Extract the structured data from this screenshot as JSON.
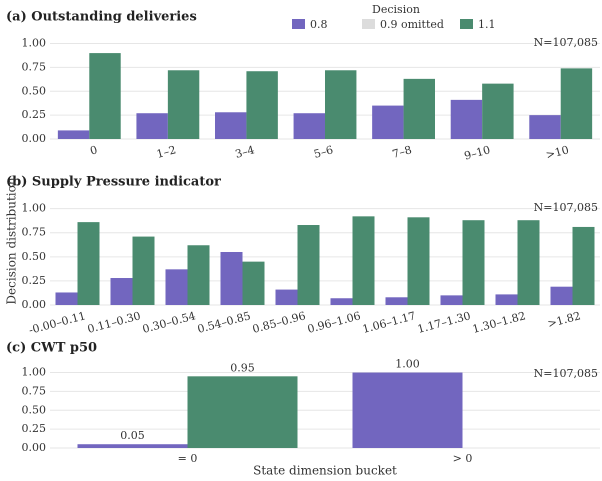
{
  "chart_data": [
    {
      "type": "bar",
      "title": "(a) Outstanding deliveries",
      "annotation": "N=107,085",
      "legend_title": "Decision",
      "categories": [
        "0",
        "1–2",
        "3–4",
        "5–6",
        "7–8",
        "9–10",
        ">10"
      ],
      "series": [
        {
          "name": "0.8",
          "color": "#7266bf",
          "values": [
            0.09,
            0.27,
            0.28,
            0.27,
            0.35,
            0.41,
            0.25
          ]
        },
        {
          "name": "0.9 omitted",
          "color": "#dcdcdc",
          "values": [
            null,
            null,
            null,
            null,
            null,
            null,
            null
          ]
        },
        {
          "name": "1.1",
          "color": "#4a8b6f",
          "values": [
            0.9,
            0.72,
            0.71,
            0.72,
            0.63,
            0.58,
            0.74
          ]
        }
      ],
      "ylim": [
        0,
        1.1
      ],
      "yticks": [
        {
          "value": 0,
          "label": "0.00"
        },
        {
          "value": 0.25,
          "label": "0.25"
        },
        {
          "value": 0.5,
          "label": "0.50"
        },
        {
          "value": 0.75,
          "label": "0.75"
        },
        {
          "value": 1,
          "label": "1.00"
        }
      ],
      "grid": true
    },
    {
      "type": "bar",
      "title": "(b) Supply Pressure indicator",
      "annotation": "N=107,085",
      "ylabel": "Decision distribution",
      "categories": [
        "-0.00–0.11",
        "0.11–0.30",
        "0.30–0.54",
        "0.54–0.85",
        "0.85–0.96",
        "0.96–1.06",
        "1.06–1.17",
        "1.17–1.30",
        "1.30–1.82",
        ">1.82"
      ],
      "series": [
        {
          "color": "#7266bf",
          "values": [
            0.13,
            0.28,
            0.37,
            0.55,
            0.16,
            0.07,
            0.08,
            0.1,
            0.11,
            0.19
          ]
        },
        {
          "color": "#4a8b6f",
          "values": [
            0.86,
            0.71,
            0.62,
            0.45,
            0.83,
            0.92,
            0.91,
            0.88,
            0.88,
            0.81
          ]
        }
      ],
      "ylim": [
        0,
        1.1
      ],
      "yticks": [
        {
          "value": 0,
          "label": "0.00"
        },
        {
          "value": 0.25,
          "label": "0.25"
        },
        {
          "value": 0.5,
          "label": "0.50"
        },
        {
          "value": 0.75,
          "label": "0.75"
        },
        {
          "value": 1,
          "label": "1.00"
        }
      ],
      "grid": true
    },
    {
      "type": "bar",
      "title": "(c) CWT p50",
      "annotation": "N=107,085",
      "xlabel": "State dimension bucket",
      "categories": [
        "= 0",
        "> 0"
      ],
      "series": [
        {
          "color": "#7266bf",
          "values": [
            0.05,
            1.0
          ],
          "value_labels": [
            "0.05",
            "1.00"
          ]
        },
        {
          "color": "#4a8b6f",
          "values": [
            0.95,
            null
          ],
          "value_labels": [
            "0.95",
            null
          ]
        }
      ],
      "ylim": [
        0,
        1.1
      ],
      "yticks": [
        {
          "value": 0,
          "label": "0.00"
        },
        {
          "value": 0.25,
          "label": "0.25"
        },
        {
          "value": 0.5,
          "label": "0.50"
        },
        {
          "value": 0.75,
          "label": "0.75"
        },
        {
          "value": 1,
          "label": "1.00"
        }
      ],
      "grid": true
    }
  ]
}
